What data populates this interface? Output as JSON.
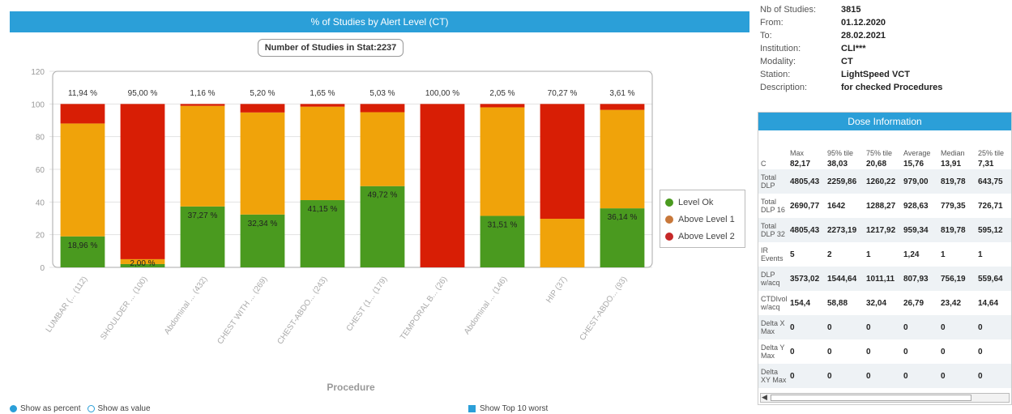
{
  "chart_data": {
    "type": "bar",
    "stacked": true,
    "title": "% of Studies by Alert Level (CT)",
    "subtitle": "Number of Studies in Stat:2237",
    "xlabel": "Procedure",
    "ylabel": "",
    "ylim": [
      0,
      120
    ],
    "yticks": [
      "0",
      "20",
      "40",
      "60",
      "80",
      "100",
      "120"
    ],
    "grid": true,
    "legend_position": "right",
    "categories": [
      "LUMBAR (... (112)",
      "SHOULDER ... (100)",
      "Abdominal ... (432)",
      "CHEST WITH ... (269)",
      "CHEST-ABDO... (243)",
      "CHEST (1... (179)",
      "TEMPORAL B... (26)",
      "Abdominal ... (146)",
      "HIP (37)",
      "CHEST-ABDO... (93)"
    ],
    "top_labels": [
      "11,94 %",
      "95,00 %",
      "1,16 %",
      "5,20 %",
      "1,65 %",
      "5,03 %",
      "100,00 %",
      "2,05 %",
      "70,27 %",
      "3,61 %"
    ],
    "ok_labels": [
      "18,96 %",
      "2,00 %",
      "37,27 %",
      "32,34 %",
      "41,15 %",
      "49,72 %",
      "",
      "31,51 %",
      "",
      "36,14 %"
    ],
    "series": [
      {
        "name": "Level Ok",
        "color": "#4a9a1f",
        "values": [
          18.96,
          2.0,
          37.27,
          32.34,
          41.15,
          49.72,
          0,
          31.51,
          0,
          36.14
        ]
      },
      {
        "name": "Above Level 1",
        "color": "#f0a30a",
        "values": [
          69.1,
          3.0,
          61.57,
          62.46,
          57.2,
          45.25,
          0,
          66.44,
          29.73,
          60.25
        ]
      },
      {
        "name": "Above Level 2",
        "color": "#d81e05",
        "values": [
          11.94,
          95.0,
          1.16,
          5.2,
          1.65,
          5.03,
          100.0,
          2.05,
          70.27,
          3.61
        ]
      }
    ]
  },
  "legend": [
    {
      "label": "Level Ok",
      "color": "#4a9a1f"
    },
    {
      "label": "Above Level 1",
      "color": "#c8783a"
    },
    {
      "label": "Above Level 2",
      "color": "#c62828"
    }
  ],
  "controls": {
    "show_percent": "Show as percent",
    "show_value": "Show as value",
    "top10": "Show Top 10 worst"
  },
  "info": [
    {
      "label": "Nb of Studies:",
      "value": "3815"
    },
    {
      "label": "From:",
      "value": "01.12.2020"
    },
    {
      "label": "To:",
      "value": "28.02.2021"
    },
    {
      "label": "Institution:",
      "value": "CLI***"
    },
    {
      "label": "Modality:",
      "value": "CT"
    },
    {
      "label": "Station:",
      "value": "LightSpeed VCT"
    },
    {
      "label": "Description:",
      "value": "for checked Procedures"
    }
  ],
  "dose": {
    "title": "Dose Information",
    "columns": [
      "",
      "Max",
      "95% tile",
      "75% tile",
      "Average",
      "Median",
      "25% tile"
    ],
    "rows": [
      {
        "label": "C",
        "values": [
          "82,17",
          "38,03",
          "20,68",
          "15,76",
          "13,91",
          "7,31"
        ]
      },
      {
        "label": "Total DLP",
        "values": [
          "4805,43",
          "2259,86",
          "1260,22",
          "979,00",
          "819,78",
          "643,75"
        ]
      },
      {
        "label": "Total DLP 16",
        "values": [
          "2690,77",
          "1642",
          "1288,27",
          "928,63",
          "779,35",
          "726,71"
        ]
      },
      {
        "label": "Total DLP 32",
        "values": [
          "4805,43",
          "2273,19",
          "1217,92",
          "959,34",
          "819,78",
          "595,12"
        ]
      },
      {
        "label": "IR Events",
        "values": [
          "5",
          "2",
          "1",
          "1,24",
          "1",
          "1"
        ]
      },
      {
        "label": "DLP w/acq",
        "values": [
          "3573,02",
          "1544,64",
          "1011,11",
          "807,93",
          "756,19",
          "559,64"
        ]
      },
      {
        "label": "CTDIvol w/acq",
        "values": [
          "154,4",
          "58,88",
          "32,04",
          "26,79",
          "23,42",
          "14,64"
        ]
      },
      {
        "label": "Delta X Max",
        "values": [
          "0",
          "0",
          "0",
          "0",
          "0",
          "0"
        ]
      },
      {
        "label": "Delta Y Max",
        "values": [
          "0",
          "0",
          "0",
          "0",
          "0",
          "0"
        ]
      },
      {
        "label": "Delta XY Max",
        "values": [
          "0",
          "0",
          "0",
          "0",
          "0",
          "0"
        ]
      }
    ]
  }
}
